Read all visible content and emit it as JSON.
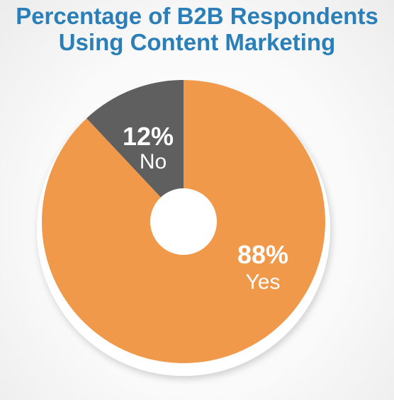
{
  "chart_data": {
    "type": "pie",
    "title_lines": [
      "Percentage of B2B Respondents",
      "Using Content Marketing"
    ],
    "slices": [
      {
        "label": "No",
        "value": 12,
        "display": "12%",
        "color": "#5f5f5f"
      },
      {
        "label": "Yes",
        "value": 88,
        "display": "88%",
        "color": "#f0994a"
      }
    ],
    "donut_hole": true,
    "legend": "none",
    "slice_border_color": "#ffffff"
  }
}
